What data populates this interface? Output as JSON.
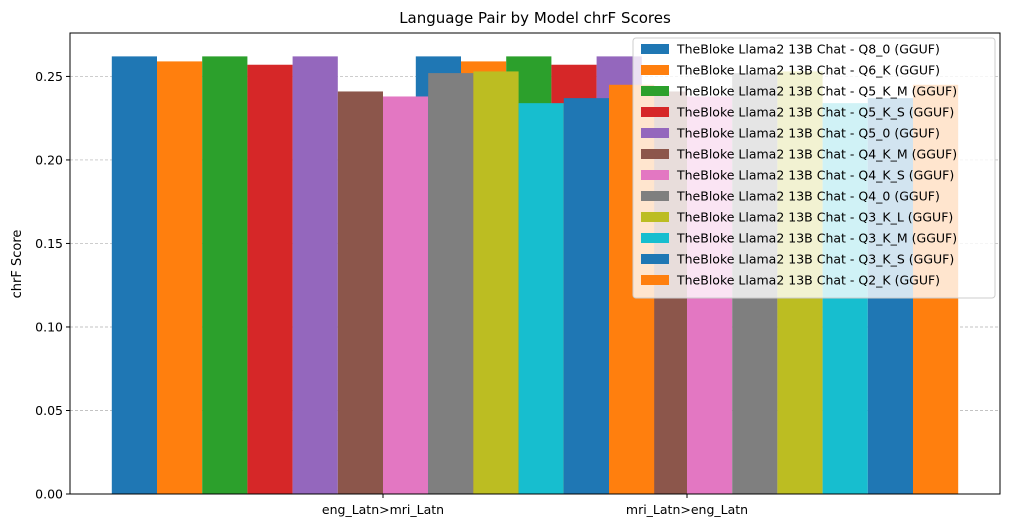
{
  "chart_data": {
    "type": "bar",
    "title": "Language Pair by Model chrF Scores",
    "xlabel": "",
    "ylabel": "chrF Score",
    "ylim": [
      0,
      0.276
    ],
    "yticks": [
      "0.00",
      "0.05",
      "0.10",
      "0.15",
      "0.20",
      "0.25"
    ],
    "ytick_values": [
      0,
      0.05,
      0.1,
      0.15,
      0.2,
      0.25
    ],
    "grid": "horizontal dashed",
    "legend_position": "top-right",
    "categories": [
      "eng_Latn>mri_Latn",
      "mri_Latn>eng_Latn"
    ],
    "series": [
      {
        "name": "TheBloke Llama2 13B Chat - Q8_0 (GGUF)",
        "color": "#1f77b4",
        "values": [
          0.262,
          0.262
        ]
      },
      {
        "name": "TheBloke Llama2 13B Chat - Q6_K (GGUF)",
        "color": "#ff7f0e",
        "values": [
          0.259,
          0.259
        ]
      },
      {
        "name": "TheBloke Llama2 13B Chat - Q5_K_M (GGUF)",
        "color": "#2ca02c",
        "values": [
          0.262,
          0.262
        ]
      },
      {
        "name": "TheBloke Llama2 13B Chat - Q5_K_S (GGUF)",
        "color": "#d62728",
        "values": [
          0.257,
          0.257
        ]
      },
      {
        "name": "TheBloke Llama2 13B Chat - Q5_0 (GGUF)",
        "color": "#9467bd",
        "values": [
          0.262,
          0.262
        ]
      },
      {
        "name": "TheBloke Llama2 13B Chat - Q4_K_M (GGUF)",
        "color": "#8c564b",
        "values": [
          0.241,
          0.241
        ]
      },
      {
        "name": "TheBloke Llama2 13B Chat - Q4_K_S (GGUF)",
        "color": "#e377c2",
        "values": [
          0.238,
          0.238
        ]
      },
      {
        "name": "TheBloke Llama2 13B Chat - Q4_0 (GGUF)",
        "color": "#7f7f7f",
        "values": [
          0.252,
          0.252
        ]
      },
      {
        "name": "TheBloke Llama2 13B Chat - Q3_K_L (GGUF)",
        "color": "#bcbd22",
        "values": [
          0.253,
          0.253
        ]
      },
      {
        "name": "TheBloke Llama2 13B Chat - Q3_K_M (GGUF)",
        "color": "#17becf",
        "values": [
          0.234,
          0.234
        ]
      },
      {
        "name": "TheBloke Llama2 13B Chat - Q3_K_S (GGUF)",
        "color": "#1f77b4",
        "values": [
          0.237,
          0.237
        ]
      },
      {
        "name": "TheBloke Llama2 13B Chat - Q2_K (GGUF)",
        "color": "#ff7f0e",
        "values": [
          0.245,
          0.245
        ]
      }
    ]
  }
}
